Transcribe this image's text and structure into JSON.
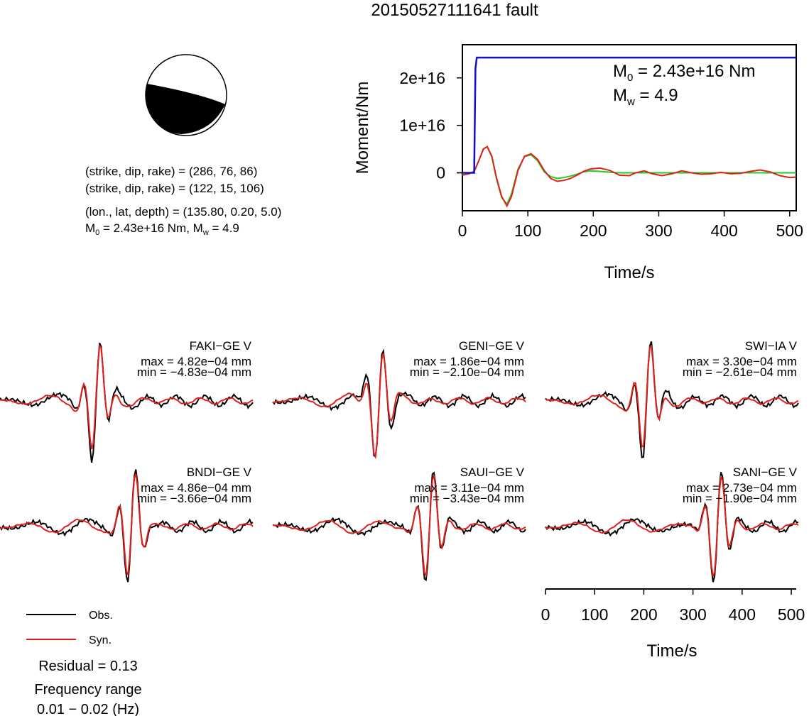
{
  "title": "20150527111641 fault",
  "beachball": {
    "lines": [
      "(strike, dip, rake) = (286, 76, 86)",
      "(strike, dip, rake) = (122, 15, 106)",
      "(lon., lat, depth) = (135.80, 0.20, 5.0)"
    ],
    "moment_line": {
      "m0_prefix": "M",
      "m0_sub": "0",
      "m0_rest": " = 2.43e+16 Nm, ",
      "mw_prefix": "M",
      "mw_sub": "w",
      "mw_rest": " = 4.9"
    }
  },
  "moment_plot": {
    "ylabel": "Moment/Nm",
    "xlabel": "Time/s",
    "annotation": {
      "m0": {
        "prefix": "M",
        "sub": "0",
        "rest": " = 2.43e+16 Nm"
      },
      "mw": {
        "prefix": "M",
        "sub": "w",
        "rest": " = 4.9"
      }
    }
  },
  "legend": {
    "obs": "Obs.",
    "syn": "Syn."
  },
  "residual": "Residual = 0.13",
  "frequency": {
    "label": "Frequency range",
    "value": "0.01 − 0.02 (Hz)"
  },
  "colors": {
    "obs": "#000000",
    "syn": "#e0201c",
    "moment": "#1010c8",
    "stf": "#22cc22"
  },
  "chart_data": [
    {
      "type": "line",
      "title": "",
      "xlabel": "Time/s",
      "ylabel": "Moment/Nm",
      "xlim": [
        0,
        510
      ],
      "ylim": [
        -8000000000000000.0,
        2.7e+16
      ],
      "xticks": [
        0,
        100,
        200,
        300,
        400,
        500
      ],
      "yticks": [
        0,
        1e+16,
        2e+16
      ],
      "ytick_labels": [
        "0",
        "1e+16",
        "2e+16"
      ],
      "series": [
        {
          "role": "moment",
          "color": "#1010c8",
          "x": [
            0,
            18,
            20,
            22,
            510
          ],
          "y": [
            0,
            0,
            2.2e+16,
            2.43e+16,
            2.43e+16
          ]
        },
        {
          "role": "obs",
          "color": "#e0201c",
          "x": [
            0,
            10,
            18,
            25,
            32,
            38,
            45,
            52,
            60,
            68,
            75,
            85,
            95,
            105,
            115,
            125,
            135,
            145,
            155,
            165,
            175,
            185,
            195,
            210,
            225,
            240,
            255,
            265,
            278,
            290,
            305,
            320,
            335,
            350,
            365,
            380,
            395,
            410,
            425,
            440,
            455,
            470,
            485,
            500,
            510
          ],
          "y": [
            -500000000000000.0,
            -200000000000000.0,
            300000000000000.0,
            2500000000000000.0,
            5000000000000000.0,
            5500000000000000.0,
            3500000000000000.0,
            -1000000000000000.0,
            -5000000000000000.0,
            -7000000000000000.0,
            -5000000000000000.0,
            500000000000000.0,
            3500000000000000.0,
            4000000000000000.0,
            2800000000000000.0,
            500000000000000.0,
            -1200000000000000.0,
            -1800000000000000.0,
            -1600000000000000.0,
            -1200000000000000.0,
            -500000000000000.0,
            300000000000000.0,
            800000000000000.0,
            1000000000000000.0,
            500000000000000.0,
            -500000000000000.0,
            -600000000000000.0,
            0.0,
            400000000000000.0,
            -200000000000000.0,
            -600000000000000.0,
            -200000000000000.0,
            400000000000000.0,
            0.0,
            -300000000000000.0,
            -200000000000000.0,
            100000000000000.0,
            -200000000000000.0,
            -100000000000000.0,
            300000000000000.0,
            600000000000000.0,
            200000000000000.0,
            -600000000000000.0,
            -1000000000000000.0,
            -900000000000000.0
          ]
        },
        {
          "role": "syn",
          "color": "#22cc22",
          "x": [
            0,
            10,
            18,
            25,
            32,
            38,
            45,
            52,
            60,
            68,
            75,
            85,
            95,
            105,
            115,
            125,
            135,
            145,
            155,
            165,
            175,
            185,
            195,
            210,
            225,
            240,
            260,
            300,
            350,
            400,
            450,
            510
          ],
          "y": [
            -400000000000000.0,
            -200000000000000.0,
            300000000000000.0,
            2500000000000000.0,
            5000000000000000.0,
            5500000000000000.0,
            3300000000000000.0,
            -1200000000000000.0,
            -5200000000000000.0,
            -6600000000000000.0,
            -4500000000000000.0,
            800000000000000.0,
            3400000000000000.0,
            3800000000000000.0,
            2500000000000000.0,
            200000000000000.0,
            -800000000000000.0,
            -1200000000000000.0,
            -1000000000000000.0,
            -700000000000000.0,
            -300000000000000.0,
            200000000000000.0,
            400000000000000.0,
            300000000000000.0,
            100000000000000.0,
            0.0,
            0.0,
            0.0,
            0.0,
            0.0,
            0.0,
            0.0
          ]
        }
      ]
    },
    {
      "type": "line",
      "title": "",
      "xlabel": "Time/s",
      "xlim": [
        0,
        510
      ],
      "xticks": [
        0,
        100,
        200,
        300,
        400,
        500
      ],
      "traces": [
        {
          "label": "FAKI−GE V",
          "max": "max = 4.82e−04 mm",
          "min": "min = −4.83e−04 mm"
        },
        {
          "label": "GENI−GE V",
          "max": "max = 1.86e−04 mm",
          "min": "min = −2.10e−04 mm"
        },
        {
          "label": "SWI−IA V",
          "max": "max = 3.30e−04 mm",
          "min": "min = −2.61e−04 mm"
        },
        {
          "label": "BNDI−GE V",
          "max": "max = 4.86e−04 mm",
          "min": "min = −3.66e−04 mm"
        },
        {
          "label": "SAUI−GE V",
          "max": "max = 3.11e−04 mm",
          "min": "min = −3.43e−04 mm"
        },
        {
          "label": "SANI−GE V",
          "max": "max = 2.73e−04 mm",
          "min": "min = −1.90e−04 mm"
        }
      ]
    }
  ]
}
